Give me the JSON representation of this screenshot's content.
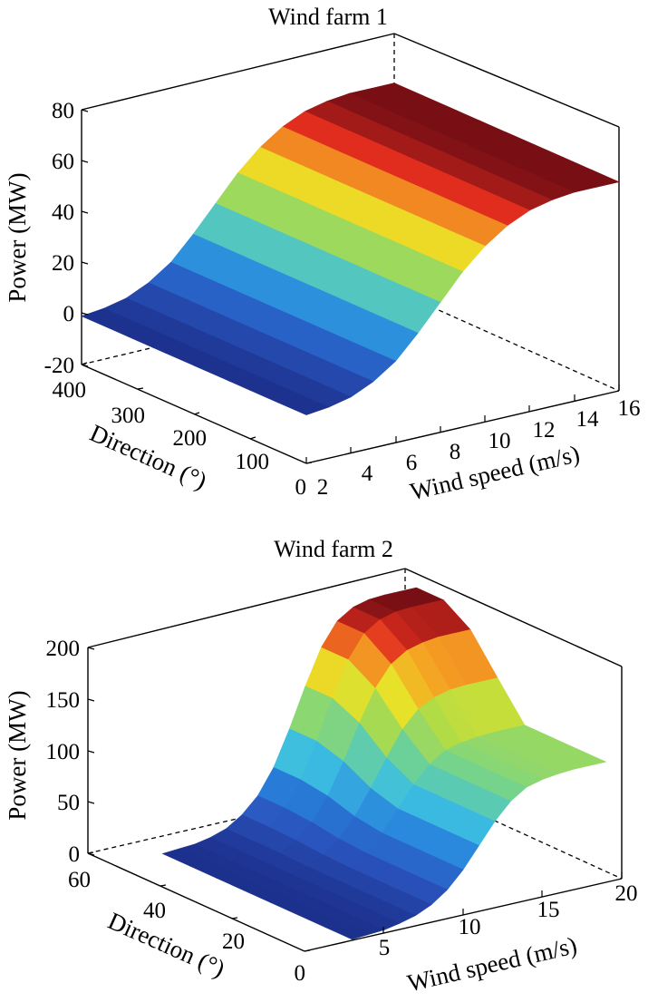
{
  "chart_data": [
    {
      "type": "surface3d",
      "title": "Wind farm 1",
      "xlabel": "Wind speed (m/s)",
      "ylabel": "Direction (°)",
      "zlabel": "Power (MW)",
      "xlim": [
        2,
        16
      ],
      "ylim": [
        0,
        400
      ],
      "zlim": [
        -20,
        80
      ],
      "x_ticks": [
        "2",
        "4",
        "6",
        "8",
        "10",
        "12",
        "14",
        "16"
      ],
      "y_ticks": [
        "0",
        "100",
        "200",
        "300",
        "400"
      ],
      "z_ticks": [
        "-20",
        "0",
        "20",
        "40",
        "60",
        "80"
      ],
      "colormap": "jet",
      "grid": false,
      "wind_speed": [
        2,
        3,
        4,
        5,
        6,
        7,
        8,
        9,
        10,
        11,
        12,
        13,
        14,
        15,
        16
      ],
      "direction": [
        0,
        50,
        100,
        150,
        200,
        250,
        300,
        350,
        400
      ],
      "power": [
        [
          -1,
          0,
          2,
          6,
          12,
          21,
          31,
          41,
          49,
          55,
          59,
          61,
          62,
          62,
          62
        ],
        [
          -1,
          0,
          2,
          6,
          12,
          21,
          31,
          41,
          49,
          55,
          59,
          61,
          62,
          62,
          62
        ],
        [
          -1,
          0,
          2,
          6,
          12,
          21,
          31,
          41,
          49,
          55,
          59,
          61,
          62,
          62,
          62
        ],
        [
          -1,
          0,
          2,
          6,
          12,
          21,
          31,
          41,
          49,
          55,
          59,
          61,
          62,
          62,
          62
        ],
        [
          -1,
          0,
          2,
          6,
          12,
          21,
          31,
          41,
          49,
          55,
          59,
          61,
          62,
          62,
          62
        ],
        [
          -1,
          0,
          2,
          6,
          12,
          21,
          31,
          41,
          49,
          55,
          59,
          61,
          62,
          62,
          62
        ],
        [
          -1,
          0,
          2,
          6,
          12,
          21,
          31,
          41,
          49,
          55,
          59,
          61,
          62,
          62,
          62
        ],
        [
          -1,
          0,
          2,
          6,
          12,
          21,
          31,
          41,
          49,
          55,
          59,
          61,
          62,
          62,
          62
        ],
        [
          -1,
          0,
          2,
          6,
          12,
          21,
          31,
          41,
          49,
          55,
          59,
          61,
          62,
          62,
          62
        ]
      ],
      "color_range": [
        -1,
        62
      ]
    },
    {
      "type": "surface3d",
      "title": "Wind farm 2",
      "xlabel": "Wind speed (m/s)",
      "ylabel": "Direction (°)",
      "zlabel": "Power (MW)",
      "xlim": [
        0,
        20
      ],
      "ylim": [
        0,
        60
      ],
      "zlim": [
        0,
        200
      ],
      "x_ticks": [
        "5",
        "10",
        "15",
        "20"
      ],
      "y_ticks": [
        "0",
        "20",
        "40",
        "60"
      ],
      "z_ticks": [
        "0",
        "50",
        "100",
        "150",
        "200"
      ],
      "colormap": "jet",
      "grid": false,
      "wind_speed": [
        3,
        4,
        5,
        6,
        7,
        8,
        9,
        10,
        11,
        12,
        13,
        14,
        15,
        16,
        17,
        18,
        19
      ],
      "direction": [
        0,
        7.5,
        15,
        22.5,
        30,
        37.5,
        45,
        52.5
      ],
      "power": [
        [
          1,
          2,
          3,
          6,
          10,
          17,
          28,
          44,
          64,
          84,
          100,
          110,
          114,
          116,
          117,
          117,
          117
        ],
        [
          1,
          2,
          3,
          6,
          10,
          17,
          28,
          44,
          64,
          84,
          100,
          110,
          114,
          116,
          117,
          117,
          117
        ],
        [
          1,
          2,
          3,
          6,
          10,
          17,
          28,
          44,
          64,
          84,
          100,
          110,
          114,
          116,
          117,
          117,
          117
        ],
        [
          1,
          2,
          3,
          6,
          10,
          17,
          28,
          44,
          64,
          84,
          100,
          110,
          114,
          116,
          117,
          117,
          117
        ],
        [
          1,
          2,
          3,
          6,
          10,
          18,
          30,
          48,
          72,
          98,
          122,
          138,
          146,
          150,
          151,
          151,
          151
        ],
        [
          1,
          2,
          3,
          6,
          11,
          20,
          34,
          56,
          86,
          120,
          150,
          170,
          180,
          184,
          186,
          186,
          186
        ],
        [
          1,
          2,
          3,
          6,
          11,
          21,
          36,
          60,
          94,
          132,
          166,
          188,
          198,
          202,
          203,
          203,
          203
        ],
        [
          1,
          2,
          3,
          6,
          11,
          21,
          36,
          60,
          94,
          132,
          166,
          188,
          198,
          202,
          203,
          203,
          203
        ]
      ],
      "color_range": [
        1,
        203
      ]
    }
  ]
}
